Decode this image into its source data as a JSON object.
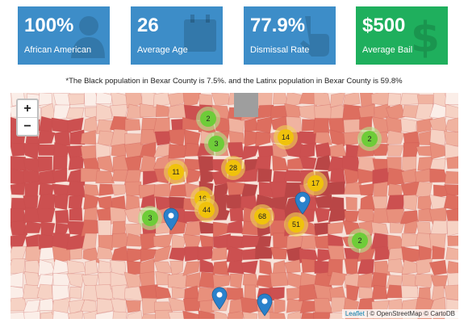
{
  "cards": [
    {
      "value": "100%",
      "label": "African American"
    },
    {
      "value": "26",
      "label": "Average Age"
    },
    {
      "value": "77.9%",
      "label": "Dismissal Rate"
    },
    {
      "value": "$500",
      "label": "Average Bail"
    }
  ],
  "note": "*The Black population in Bexar County is 7.5%. and the Latinx population in Bexar County is 59.8%",
  "map": {
    "zoom_in": "+",
    "zoom_out": "−",
    "clusters": [
      "2",
      "3",
      "14",
      "2",
      "11",
      "28",
      "17",
      "16",
      "44",
      "68",
      "51",
      "3",
      "2"
    ],
    "attribution": {
      "leaflet": "Leaflet",
      "rest": "| © OpenStreetMap © CartoDB"
    }
  }
}
